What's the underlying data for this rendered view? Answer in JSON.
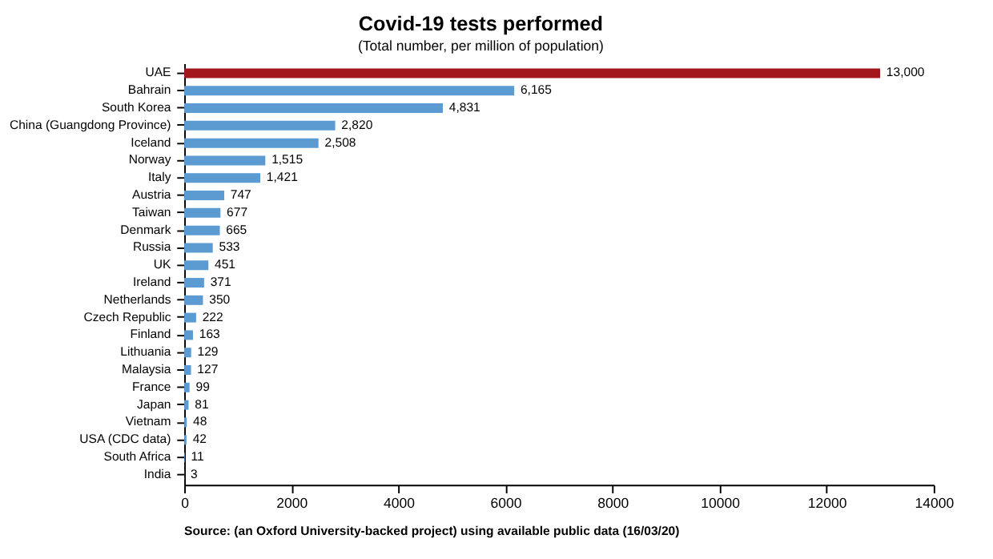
{
  "chart_data": {
    "type": "bar",
    "orientation": "horizontal",
    "title": "Covid-19 tests performed",
    "subtitle": "(Total number, per million of population)",
    "categories": [
      "UAE",
      "Bahrain",
      "South Korea",
      "China (Guangdong Province)",
      "Iceland",
      "Norway",
      "Italy",
      "Austria",
      "Taiwan",
      "Denmark",
      "Russia",
      "UK",
      "Ireland",
      "Netherlands",
      "Czech Republic",
      "Finland",
      "Lithuania",
      "Malaysia",
      "France",
      "Japan",
      "Vietnam",
      "USA (CDC data)",
      "South Africa",
      "India"
    ],
    "values": [
      13000,
      6165,
      4831,
      2820,
      2508,
      1515,
      1421,
      747,
      677,
      665,
      533,
      451,
      371,
      350,
      222,
      163,
      129,
      127,
      99,
      81,
      48,
      42,
      11,
      3
    ],
    "colors": [
      "#a3161c",
      "#5b9bd2",
      "#5b9bd2",
      "#5b9bd2",
      "#5b9bd2",
      "#5b9bd2",
      "#5b9bd2",
      "#5b9bd2",
      "#5b9bd2",
      "#5b9bd2",
      "#5b9bd2",
      "#5b9bd2",
      "#5b9bd2",
      "#5b9bd2",
      "#5b9bd2",
      "#5b9bd2",
      "#5b9bd2",
      "#5b9bd2",
      "#5b9bd2",
      "#5b9bd2",
      "#5b9bd2",
      "#5b9bd2",
      "#5b9bd2",
      "#5b9bd2"
    ],
    "xlim": [
      0,
      14000
    ],
    "xticks": [
      0,
      2000,
      4000,
      6000,
      8000,
      10000,
      12000,
      14000
    ],
    "value_labels": [
      "13,000",
      "6,165",
      "4,831",
      "2,820",
      "2,508",
      "1,515",
      "1,421",
      "747",
      "677",
      "665",
      "533",
      "451",
      "371",
      "350",
      "222",
      "163",
      "129",
      "127",
      "99",
      "81",
      "48",
      "42",
      "11",
      "3"
    ],
    "grid": false,
    "annotations": [
      "Source: (an Oxford University-backed project) using available public data (16/03/20)"
    ]
  }
}
